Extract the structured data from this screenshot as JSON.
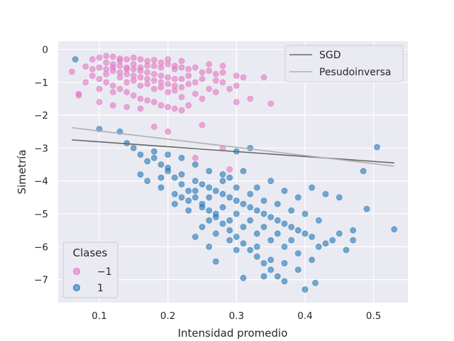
{
  "chart_data": {
    "type": "scatter",
    "title": "",
    "xlabel": "Intensidad promedio",
    "ylabel": "Simetría",
    "xlim": [
      0.04,
      0.55
    ],
    "ylim": [
      -7.7,
      0.25
    ],
    "xticks": [
      0.1,
      0.2,
      0.3,
      0.4,
      0.5
    ],
    "yticks": [
      0,
      -1,
      -2,
      -3,
      -4,
      -5,
      -6,
      -7
    ],
    "xtick_labels": [
      "0.1",
      "0.2",
      "0.3",
      "0.4",
      "0.5"
    ],
    "ytick_labels": [
      "0",
      "−1",
      "−2",
      "−3",
      "−4",
      "−5",
      "−6",
      "−7"
    ],
    "grid": true,
    "lines": [
      {
        "name": "SGD",
        "color": "#666666",
        "x": [
          0.06,
          0.53
        ],
        "y": [
          -2.75,
          -3.45
        ]
      },
      {
        "name": "Pesudoinversa",
        "color": "#b0b0b0",
        "x": [
          0.06,
          0.53
        ],
        "y": [
          -2.38,
          -3.55
        ]
      }
    ],
    "line_legend_placement": "top-right",
    "classes_legend": {
      "title": "Clases",
      "placement": "lower-left",
      "entries": [
        {
          "label": "−1",
          "color": "#e377c2"
        },
        {
          "label": "1",
          "color": "#1f77b4"
        }
      ]
    },
    "series": [
      {
        "class": "−1",
        "color": "#e377c2",
        "points": [
          [
            0.06,
            -0.68
          ],
          [
            0.07,
            -1.35
          ],
          [
            0.07,
            -1.4
          ],
          [
            0.08,
            -0.52
          ],
          [
            0.09,
            -0.3
          ],
          [
            0.1,
            -0.25
          ],
          [
            0.11,
            -0.2
          ],
          [
            0.12,
            -0.22
          ],
          [
            0.13,
            -0.28
          ],
          [
            0.14,
            -0.3
          ],
          [
            0.15,
            -0.25
          ],
          [
            0.16,
            -0.3
          ],
          [
            0.17,
            -0.35
          ],
          [
            0.18,
            -0.32
          ],
          [
            0.19,
            -0.4
          ],
          [
            0.2,
            -0.45
          ],
          [
            0.21,
            -0.5
          ],
          [
            0.22,
            -0.55
          ],
          [
            0.23,
            -0.6
          ],
          [
            0.24,
            -0.55
          ],
          [
            0.25,
            -0.7
          ],
          [
            0.26,
            -0.65
          ],
          [
            0.27,
            -0.75
          ],
          [
            0.28,
            -0.7
          ],
          [
            0.3,
            -0.8
          ],
          [
            0.31,
            -0.85
          ],
          [
            0.09,
            -0.6
          ],
          [
            0.1,
            -0.55
          ],
          [
            0.11,
            -0.6
          ],
          [
            0.12,
            -0.65
          ],
          [
            0.13,
            -0.7
          ],
          [
            0.14,
            -0.75
          ],
          [
            0.15,
            -0.8
          ],
          [
            0.16,
            -0.85
          ],
          [
            0.17,
            -0.9
          ],
          [
            0.18,
            -0.95
          ],
          [
            0.19,
            -1.0
          ],
          [
            0.2,
            -1.05
          ],
          [
            0.21,
            -1.1
          ],
          [
            0.22,
            -1.15
          ],
          [
            0.1,
            -0.9
          ],
          [
            0.11,
            -1.0
          ],
          [
            0.12,
            -1.1
          ],
          [
            0.13,
            -1.2
          ],
          [
            0.14,
            -1.3
          ],
          [
            0.15,
            -1.4
          ],
          [
            0.16,
            -1.5
          ],
          [
            0.17,
            -1.55
          ],
          [
            0.18,
            -1.6
          ],
          [
            0.19,
            -1.7
          ],
          [
            0.2,
            -1.75
          ],
          [
            0.21,
            -1.8
          ],
          [
            0.22,
            -1.85
          ],
          [
            0.1,
            -1.6
          ],
          [
            0.12,
            -1.7
          ],
          [
            0.14,
            -1.75
          ],
          [
            0.16,
            -1.8
          ],
          [
            0.23,
            -1.7
          ],
          [
            0.25,
            -1.5
          ],
          [
            0.27,
            -1.3
          ],
          [
            0.29,
            -1.2
          ],
          [
            0.3,
            -1.1
          ],
          [
            0.32,
            -1.5
          ],
          [
            0.35,
            -1.65
          ],
          [
            0.34,
            -0.85
          ],
          [
            0.28,
            -1.0
          ],
          [
            0.26,
            -1.2
          ],
          [
            0.24,
            -1.35
          ],
          [
            0.22,
            -1.45
          ],
          [
            0.2,
            -2.5
          ],
          [
            0.18,
            -2.35
          ],
          [
            0.25,
            -2.3
          ],
          [
            0.24,
            -3.3
          ],
          [
            0.29,
            -3.65
          ],
          [
            0.28,
            -3.0
          ],
          [
            0.3,
            -1.6
          ],
          [
            0.11,
            -0.4
          ],
          [
            0.12,
            -0.45
          ],
          [
            0.13,
            -0.5
          ],
          [
            0.14,
            -0.55
          ],
          [
            0.15,
            -0.6
          ],
          [
            0.16,
            -0.65
          ],
          [
            0.17,
            -0.7
          ],
          [
            0.18,
            -0.75
          ],
          [
            0.19,
            -0.8
          ],
          [
            0.2,
            -0.85
          ],
          [
            0.21,
            -0.9
          ],
          [
            0.13,
            -0.35
          ],
          [
            0.15,
            -0.45
          ],
          [
            0.17,
            -0.5
          ],
          [
            0.19,
            -0.55
          ],
          [
            0.21,
            -0.6
          ],
          [
            0.23,
            -0.8
          ],
          [
            0.25,
            -0.9
          ],
          [
            0.27,
            -0.95
          ],
          [
            0.09,
            -0.8
          ],
          [
            0.08,
            -1.0
          ],
          [
            0.1,
            -1.2
          ],
          [
            0.12,
            -1.3
          ],
          [
            0.14,
            -1.0
          ],
          [
            0.16,
            -1.1
          ],
          [
            0.18,
            -1.2
          ],
          [
            0.2,
            -1.3
          ],
          [
            0.22,
            -0.9
          ],
          [
            0.24,
            -1.0
          ],
          [
            0.11,
            -0.75
          ],
          [
            0.13,
            -0.85
          ],
          [
            0.15,
            -0.95
          ],
          [
            0.17,
            -1.05
          ],
          [
            0.19,
            -1.15
          ],
          [
            0.21,
            -1.25
          ],
          [
            0.23,
            -1.05
          ],
          [
            0.26,
            -0.45
          ],
          [
            0.28,
            -0.5
          ],
          [
            0.2,
            -0.3
          ],
          [
            0.22,
            -0.35
          ],
          [
            0.18,
            -0.5
          ],
          [
            0.16,
            -0.55
          ],
          [
            0.14,
            -0.6
          ],
          [
            0.12,
            -0.55
          ]
        ]
      },
      {
        "class": "1",
        "color": "#1f77b4",
        "points": [
          [
            0.065,
            -0.3
          ],
          [
            0.1,
            -2.42
          ],
          [
            0.13,
            -2.5
          ],
          [
            0.14,
            -2.85
          ],
          [
            0.15,
            -3.0
          ],
          [
            0.16,
            -3.2
          ],
          [
            0.17,
            -3.4
          ],
          [
            0.18,
            -3.1
          ],
          [
            0.19,
            -3.5
          ],
          [
            0.2,
            -3.7
          ],
          [
            0.21,
            -3.9
          ],
          [
            0.22,
            -4.1
          ],
          [
            0.23,
            -4.3
          ],
          [
            0.24,
            -4.5
          ],
          [
            0.25,
            -4.7
          ],
          [
            0.26,
            -4.9
          ],
          [
            0.27,
            -5.1
          ],
          [
            0.28,
            -5.3
          ],
          [
            0.29,
            -5.5
          ],
          [
            0.3,
            -5.7
          ],
          [
            0.31,
            -5.9
          ],
          [
            0.32,
            -6.1
          ],
          [
            0.33,
            -6.3
          ],
          [
            0.34,
            -6.5
          ],
          [
            0.35,
            -6.7
          ],
          [
            0.36,
            -6.9
          ],
          [
            0.37,
            -7.05
          ],
          [
            0.4,
            -7.3
          ],
          [
            0.415,
            -7.1
          ],
          [
            0.31,
            -6.95
          ],
          [
            0.3,
            -3.1
          ],
          [
            0.32,
            -3.0
          ],
          [
            0.29,
            -3.9
          ],
          [
            0.31,
            -3.7
          ],
          [
            0.33,
            -4.2
          ],
          [
            0.35,
            -4.0
          ],
          [
            0.37,
            -4.3
          ],
          [
            0.39,
            -4.5
          ],
          [
            0.41,
            -4.2
          ],
          [
            0.43,
            -4.4
          ],
          [
            0.45,
            -4.5
          ],
          [
            0.47,
            -5.5
          ],
          [
            0.485,
            -3.7
          ],
          [
            0.49,
            -4.85
          ],
          [
            0.505,
            -2.97
          ],
          [
            0.53,
            -5.47
          ],
          [
            0.46,
            -6.1
          ],
          [
            0.44,
            -5.8
          ],
          [
            0.42,
            -6.0
          ],
          [
            0.4,
            -5.6
          ],
          [
            0.38,
            -5.4
          ],
          [
            0.36,
            -5.2
          ],
          [
            0.34,
            -5.0
          ],
          [
            0.32,
            -4.8
          ],
          [
            0.3,
            -4.6
          ],
          [
            0.28,
            -4.4
          ],
          [
            0.26,
            -4.2
          ],
          [
            0.24,
            -4.0
          ],
          [
            0.22,
            -3.8
          ],
          [
            0.2,
            -3.6
          ],
          [
            0.18,
            -3.3
          ],
          [
            0.16,
            -3.8
          ],
          [
            0.17,
            -4.0
          ],
          [
            0.19,
            -4.2
          ],
          [
            0.21,
            -4.4
          ],
          [
            0.23,
            -4.6
          ],
          [
            0.25,
            -4.8
          ],
          [
            0.27,
            -5.0
          ],
          [
            0.29,
            -5.2
          ],
          [
            0.31,
            -5.4
          ],
          [
            0.33,
            -5.6
          ],
          [
            0.35,
            -5.8
          ],
          [
            0.37,
            -6.0
          ],
          [
            0.39,
            -6.2
          ],
          [
            0.41,
            -6.4
          ],
          [
            0.25,
            -5.4
          ],
          [
            0.27,
            -5.6
          ],
          [
            0.29,
            -5.8
          ],
          [
            0.26,
            -5.2
          ],
          [
            0.28,
            -4.8
          ],
          [
            0.3,
            -5.0
          ],
          [
            0.32,
            -5.2
          ],
          [
            0.34,
            -5.4
          ],
          [
            0.36,
            -5.6
          ],
          [
            0.38,
            -5.8
          ],
          [
            0.4,
            -5.0
          ],
          [
            0.42,
            -5.2
          ],
          [
            0.23,
            -4.9
          ],
          [
            0.21,
            -4.7
          ],
          [
            0.19,
            -3.9
          ],
          [
            0.24,
            -3.5
          ],
          [
            0.26,
            -3.7
          ],
          [
            0.28,
            -3.8
          ],
          [
            0.22,
            -3.3
          ],
          [
            0.2,
            -3.2
          ],
          [
            0.25,
            -4.1
          ],
          [
            0.27,
            -4.3
          ],
          [
            0.29,
            -4.5
          ],
          [
            0.31,
            -4.7
          ],
          [
            0.33,
            -4.9
          ],
          [
            0.35,
            -5.1
          ],
          [
            0.37,
            -5.3
          ],
          [
            0.39,
            -5.5
          ],
          [
            0.41,
            -5.7
          ],
          [
            0.43,
            -5.9
          ],
          [
            0.45,
            -5.6
          ],
          [
            0.47,
            -5.8
          ],
          [
            0.36,
            -4.7
          ],
          [
            0.38,
            -4.9
          ],
          [
            0.34,
            -4.6
          ],
          [
            0.32,
            -4.4
          ],
          [
            0.3,
            -4.2
          ],
          [
            0.28,
            -4.0
          ],
          [
            0.26,
            -4.5
          ],
          [
            0.24,
            -4.3
          ],
          [
            0.22,
            -4.5
          ],
          [
            0.35,
            -6.4
          ],
          [
            0.33,
            -6.0
          ],
          [
            0.37,
            -6.5
          ],
          [
            0.39,
            -6.7
          ],
          [
            0.27,
            -6.45
          ],
          [
            0.26,
            -6.0
          ],
          [
            0.24,
            -5.7
          ],
          [
            0.3,
            -6.1
          ],
          [
            0.34,
            -6.9
          ]
        ]
      }
    ]
  }
}
